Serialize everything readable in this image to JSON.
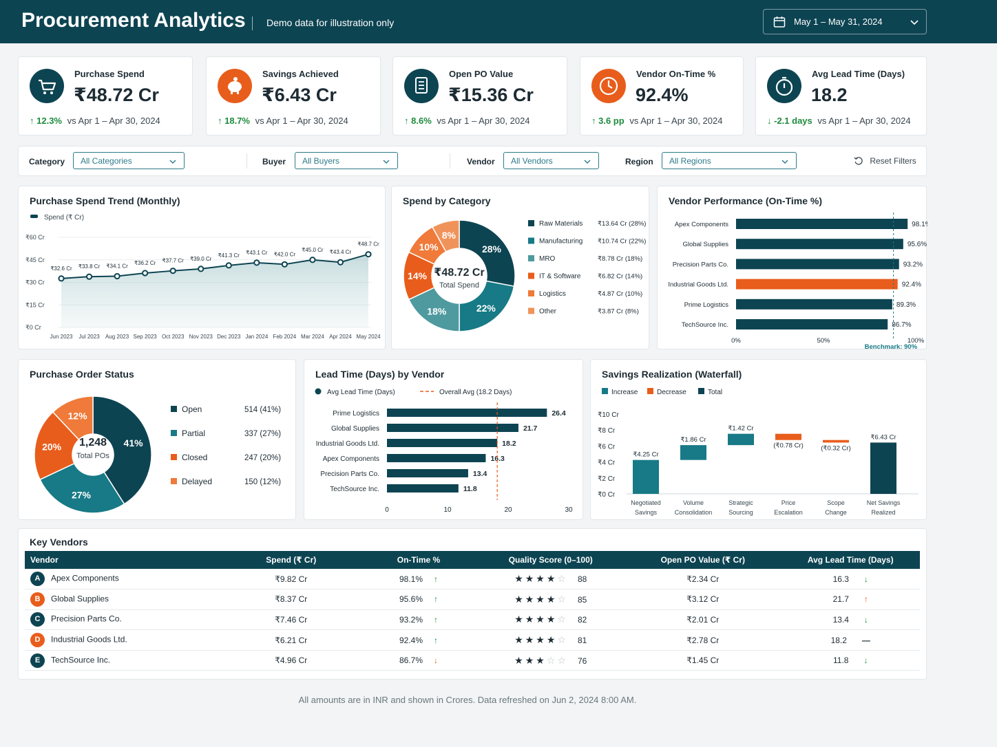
{
  "header": {
    "title": "Procurement Analytics",
    "subtitle": "Demo data for illustration only",
    "date_range": "May 1 – May 31, 2024"
  },
  "kpis": [
    {
      "label": "Purchase Spend",
      "value": "₹48.72 Cr",
      "delta": "12.3%",
      "compare": "vs Apr 1 – Apr 30, 2024",
      "direction": "up",
      "icon": "cart-icon",
      "color": "#0d4452"
    },
    {
      "label": "Savings Achieved",
      "value": "₹6.43 Cr",
      "delta": "18.7%",
      "compare": "vs Apr 1 – Apr 30, 2024",
      "direction": "up",
      "icon": "piggy-bank-icon",
      "color": "#e85d1c"
    },
    {
      "label": "Open PO Value",
      "value": "₹15.36 Cr",
      "delta": "8.6%",
      "compare": "vs Apr 1 – Apr 30, 2024",
      "direction": "up",
      "icon": "document-icon",
      "color": "#0d4452"
    },
    {
      "label": "Vendor On-Time %",
      "value": "92.4%",
      "delta": "3.6 pp",
      "compare": "vs Apr 1 – Apr 30, 2024",
      "direction": "up",
      "icon": "clock-icon",
      "color": "#e85d1c"
    },
    {
      "label": "Avg Lead Time (Days)",
      "value": "18.2",
      "delta": "-2.1 days",
      "compare": "vs Apr 1 – Apr 30, 2024",
      "direction": "down",
      "icon": "stopwatch-icon",
      "color": "#0d4452"
    }
  ],
  "filters": {
    "category_label": "Category",
    "category_value": "All Categories",
    "buyer_label": "Buyer",
    "buyer_value": "All Buyers",
    "vendor_label": "Vendor",
    "vendor_value": "All Vendors",
    "region_label": "Region",
    "region_value": "All Regions",
    "reset_label": "Reset Filters"
  },
  "colors": {
    "teal_dark": "#0d4452",
    "teal": "#177a86",
    "teal_light": "#4e9a9f",
    "orange": "#e85d1c",
    "orange_mid": "#ef7a3a",
    "orange_light": "#f0935a"
  },
  "chart_data": [
    {
      "id": "spend_trend",
      "type": "area",
      "title": "Purchase Spend Trend (Monthly)",
      "legend": [
        "Spend (₹ Cr)"
      ],
      "categories": [
        "Jun 2023",
        "Jul 2023",
        "Aug 2023",
        "Sep 2023",
        "Oct 2023",
        "Nov 2023",
        "Dec 2023",
        "Jan 2024",
        "Feb 2024",
        "Mar 2024",
        "Apr 2024",
        "May 2024"
      ],
      "values": [
        32.6,
        33.8,
        34.1,
        36.2,
        37.7,
        39.0,
        41.3,
        43.1,
        42.0,
        45.0,
        43.4,
        48.7
      ],
      "value_labels": [
        "₹32.6 Cr",
        "₹33.8 Cr",
        "₹34.1 Cr",
        "₹36.2 Cr",
        "₹37.7 Cr",
        "₹39.0 Cr",
        "₹41.3 Cr",
        "₹43.1 Cr",
        "₹42.0 Cr",
        "₹45.0 Cr",
        "₹43.4 Cr",
        "₹48.7 Cr"
      ],
      "y_ticks": [
        0,
        15,
        30,
        45,
        60
      ],
      "y_tick_labels": [
        "₹0 Cr",
        "₹15 Cr",
        "₹30 Cr",
        "₹45 Cr",
        "₹60 Cr"
      ],
      "ylim": [
        0,
        60
      ]
    },
    {
      "id": "spend_category",
      "type": "pie",
      "title": "Spend by Category",
      "center_value": "₹48.72 Cr",
      "center_label": "Total Spend",
      "slices": [
        {
          "name": "Raw Materials",
          "value": 28,
          "display": "₹13.64 Cr (28%)",
          "color": "#0d4452"
        },
        {
          "name": "Manufacturing",
          "value": 22,
          "display": "₹10.74 Cr (22%)",
          "color": "#177a86"
        },
        {
          "name": "MRO",
          "value": 18,
          "display": "₹8.78 Cr (18%)",
          "color": "#4e9a9f"
        },
        {
          "name": "IT & Software",
          "value": 14,
          "display": "₹6.82 Cr (14%)",
          "color": "#e85d1c"
        },
        {
          "name": "Logistics",
          "value": 10,
          "display": "₹4.87 Cr (10%)",
          "color": "#ef7a3a"
        },
        {
          "name": "Other",
          "value": 8,
          "display": "₹3.87 Cr (8%)",
          "color": "#f0935a"
        }
      ]
    },
    {
      "id": "vendor_performance",
      "type": "bar",
      "title": "Vendor Performance (On-Time %)",
      "categories": [
        "Apex Components",
        "Global Supplies",
        "Precision Parts Co.",
        "Industrial Goods Ltd.",
        "Prime Logistics",
        "TechSource Inc."
      ],
      "values": [
        98.1,
        95.6,
        93.2,
        92.4,
        89.3,
        86.7
      ],
      "value_labels": [
        "98.1%",
        "95.6%",
        "93.2%",
        "92.4%",
        "89.3%",
        "86.7%"
      ],
      "highlight": "Industrial Goods Ltd.",
      "x_ticks": [
        "0%",
        "50%",
        "100%"
      ],
      "xlim": [
        0,
        100
      ],
      "benchmark": 90,
      "benchmark_label": "Benchmark: 90%"
    },
    {
      "id": "po_status",
      "type": "pie",
      "title": "Purchase Order Status",
      "center_value": "1,248",
      "center_label": "Total POs",
      "slices": [
        {
          "name": "Open",
          "value": 41,
          "display": "514 (41%)",
          "color": "#0d4452"
        },
        {
          "name": "Partial",
          "value": 27,
          "display": "337 (27%)",
          "color": "#177a86"
        },
        {
          "name": "Closed",
          "value": 20,
          "display": "247 (20%)",
          "color": "#e85d1c"
        },
        {
          "name": "Delayed",
          "value": 12,
          "display": "150 (12%)",
          "color": "#ef7a3a"
        }
      ]
    },
    {
      "id": "lead_time",
      "type": "bar",
      "title": "Lead Time (Days) by Vendor",
      "legend": [
        "Avg Lead Time (Days)",
        "Overall Avg (18.2 Days)"
      ],
      "categories": [
        "Prime Logistics",
        "Global Supplies",
        "Industrial Goods Ltd.",
        "Apex Components",
        "Precision Parts Co.",
        "TechSource Inc."
      ],
      "values": [
        26.4,
        21.7,
        18.2,
        16.3,
        13.4,
        11.8
      ],
      "x_ticks": [
        0,
        10,
        20,
        30
      ],
      "xlim": [
        0,
        30
      ],
      "reference": 18.2
    },
    {
      "id": "savings_waterfall",
      "type": "bar",
      "title": "Savings Realization (Waterfall)",
      "legend": [
        "Increase",
        "Decrease",
        "Total"
      ],
      "categories": [
        "Negotiated Savings",
        "Volume Consolidation",
        "Strategic Sourcing",
        "Price Escalation",
        "Scope Change",
        "Net Savings Realized"
      ],
      "values": [
        4.25,
        1.86,
        1.42,
        -0.78,
        -0.32,
        6.43
      ],
      "value_labels": [
        "₹4.25 Cr",
        "₹1.86 Cr",
        "₹1.42 Cr",
        "(₹0.78 Cr)",
        "(₹0.32 Cr)",
        "₹6.43 Cr"
      ],
      "kinds": [
        "increase",
        "increase",
        "increase",
        "decrease",
        "decrease",
        "total"
      ],
      "y_ticks": [
        0,
        2,
        4,
        6,
        8,
        10
      ],
      "y_tick_labels": [
        "₹0 Cr",
        "₹2 Cr",
        "₹4 Cr",
        "₹6 Cr",
        "₹8 Cr",
        "₹10 Cr"
      ],
      "ylim": [
        0,
        10
      ]
    }
  ],
  "vendors": {
    "title": "Key Vendors",
    "columns": [
      "Vendor",
      "Spend (₹ Cr)",
      "On-Time %",
      "Quality Score (0–100)",
      "Open PO Value (₹ Cr)",
      "Avg Lead Time (Days)"
    ],
    "rows": [
      {
        "badge": "A",
        "badge_color": "#0d4452",
        "name": "Apex Components",
        "spend": "₹9.82 Cr",
        "ontime": "98.1%",
        "ontime_trend": "up",
        "stars": 4,
        "quality": "88",
        "openpo": "₹2.34 Cr",
        "lead": "16.3",
        "lead_trend": "down"
      },
      {
        "badge": "B",
        "badge_color": "#e85d1c",
        "name": "Global Supplies",
        "spend": "₹8.37 Cr",
        "ontime": "95.6%",
        "ontime_trend": "up",
        "stars": 4,
        "quality": "85",
        "openpo": "₹3.12 Cr",
        "lead": "21.7",
        "lead_trend": "up"
      },
      {
        "badge": "C",
        "badge_color": "#0d4452",
        "name": "Precision Parts Co.",
        "spend": "₹7.46 Cr",
        "ontime": "93.2%",
        "ontime_trend": "up",
        "stars": 4,
        "quality": "82",
        "openpo": "₹2.01 Cr",
        "lead": "13.4",
        "lead_trend": "down"
      },
      {
        "badge": "D",
        "badge_color": "#e85d1c",
        "name": "Industrial Goods Ltd.",
        "spend": "₹6.21 Cr",
        "ontime": "92.4%",
        "ontime_trend": "up",
        "stars": 4,
        "quality": "81",
        "openpo": "₹2.78 Cr",
        "lead": "18.2",
        "lead_trend": "flat"
      },
      {
        "badge": "E",
        "badge_color": "#0d4452",
        "name": "TechSource Inc.",
        "spend": "₹4.96 Cr",
        "ontime": "86.7%",
        "ontime_trend": "down",
        "stars": 3,
        "quality": "76",
        "openpo": "₹1.45 Cr",
        "lead": "11.8",
        "lead_trend": "down"
      }
    ]
  },
  "footer": "All amounts are in INR and shown in Crores.  Data refreshed on Jun 2, 2024 8:00 AM."
}
